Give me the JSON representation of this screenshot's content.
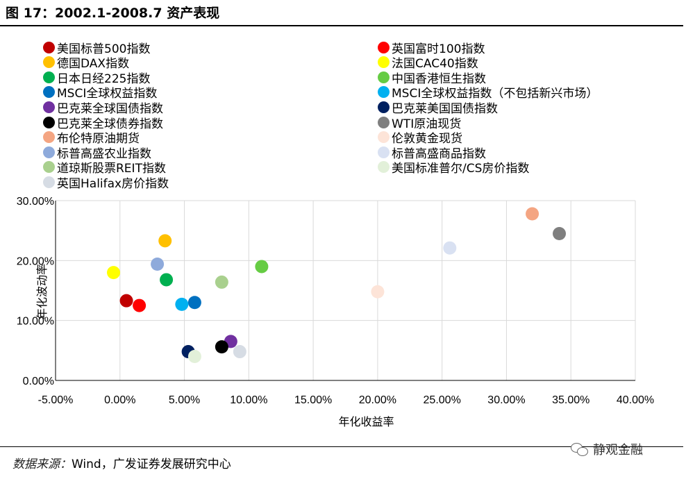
{
  "figure": {
    "title": "图 17：2002.1-2008.7 资产表现",
    "source_label": "数据来源：",
    "source_text": "Wind，广发证券发展研究中心",
    "watermark": "静观金融"
  },
  "chart_data": {
    "type": "scatter",
    "title": "",
    "xlabel": "年化收益率",
    "ylabel": "年化波动率",
    "xlim": [
      -5,
      40
    ],
    "ylim": [
      0,
      30
    ],
    "x_ticks": [
      -5,
      0,
      5,
      10,
      15,
      20,
      25,
      30,
      35,
      40
    ],
    "x_tick_labels": [
      "-5.00%",
      "0.00%",
      "5.00%",
      "10.00%",
      "15.00%",
      "20.00%",
      "25.00%",
      "30.00%",
      "35.00%",
      "40.00%"
    ],
    "y_ticks": [
      0,
      10,
      20,
      30
    ],
    "y_tick_labels": [
      "0.00%",
      "10.00%",
      "20.00%",
      "30.00%"
    ],
    "grid": true,
    "legend_position": "top, two columns",
    "series": [
      {
        "name": "美国标普500指数",
        "color": "#c00000",
        "x": 0.5,
        "y": 13.3
      },
      {
        "name": "英国富时100指数",
        "color": "#ff0000",
        "x": 1.5,
        "y": 12.5
      },
      {
        "name": "德国DAX指数",
        "color": "#ffc000",
        "x": 3.5,
        "y": 23.3
      },
      {
        "name": "法国CAC40指数",
        "color": "#ffff00",
        "x": -0.5,
        "y": 18.0
      },
      {
        "name": "日本日经225指数",
        "color": "#00b050",
        "x": 3.6,
        "y": 16.8
      },
      {
        "name": "中国香港恒生指数",
        "color": "#66cc44",
        "x": 11.0,
        "y": 19.0
      },
      {
        "name": "MSCI全球权益指数",
        "color": "#0070c0",
        "x": 5.8,
        "y": 13.0
      },
      {
        "name": "MSCI全球权益指数（不包括新兴市场）",
        "color": "#00b0f0",
        "x": 4.8,
        "y": 12.7
      },
      {
        "name": "巴克莱全球国债指数",
        "color": "#7030a0",
        "x": 8.6,
        "y": 6.5
      },
      {
        "name": "巴克莱美国国债指数",
        "color": "#002060",
        "x": 5.3,
        "y": 4.8
      },
      {
        "name": "巴克莱全球债券指数",
        "color": "#000000",
        "x": 7.9,
        "y": 5.6
      },
      {
        "name": "WTI原油现货",
        "color": "#7f7f7f",
        "x": 34.1,
        "y": 24.5
      },
      {
        "name": "布伦特原油期货",
        "color": "#f4a582",
        "x": 32.0,
        "y": 27.8
      },
      {
        "name": "伦敦黄金现货",
        "color": "#fde4d8",
        "x": 20.0,
        "y": 14.8
      },
      {
        "name": "标普高盛农业指数",
        "color": "#8eaadb",
        "x": 2.9,
        "y": 19.4
      },
      {
        "name": "标普高盛商品指数",
        "color": "#d9e1f2",
        "x": 25.6,
        "y": 22.1
      },
      {
        "name": "道琼斯股票REIT指数",
        "color": "#a9d08e",
        "x": 7.9,
        "y": 16.4
      },
      {
        "name": "美国标准普尔/CS房价指数",
        "color": "#e2f0d9",
        "x": 5.8,
        "y": 4.0
      },
      {
        "name": "英国Halifax房价指数",
        "color": "#d6dce4",
        "x": 9.3,
        "y": 4.8
      }
    ]
  }
}
